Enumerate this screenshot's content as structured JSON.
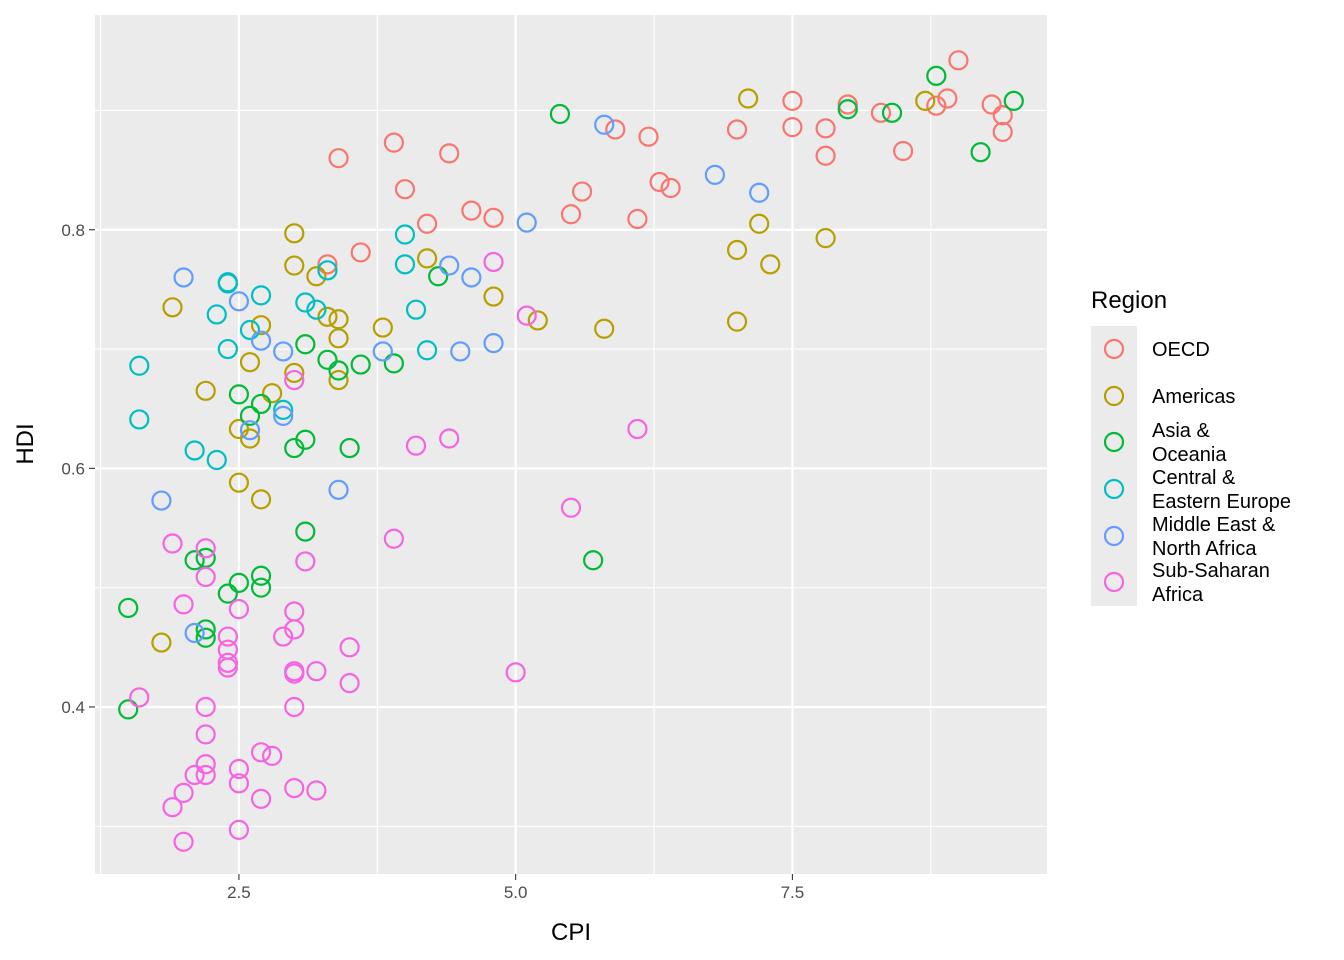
{
  "chart_data": {
    "type": "scatter",
    "xlabel": "CPI",
    "ylabel": "HDI",
    "xlim": [
      1.2,
      9.8
    ],
    "ylim": [
      0.26,
      0.98
    ],
    "x_ticks": [
      2.5,
      5.0,
      7.5
    ],
    "x_tick_labels": [
      "2.5",
      "5.0",
      "7.5"
    ],
    "y_ticks": [
      0.4,
      0.6,
      0.8
    ],
    "y_tick_labels": [
      "0.4",
      "0.6",
      "0.8"
    ],
    "grid": true,
    "marker": "open-circle",
    "legend": {
      "title": "Region",
      "placement": "right",
      "entries": [
        {
          "lines": [
            "OECD"
          ]
        },
        {
          "lines": [
            "Americas"
          ]
        },
        {
          "lines": [
            "Asia &",
            "Oceania"
          ]
        },
        {
          "lines": [
            "Central &",
            "Eastern Europe"
          ]
        },
        {
          "lines": [
            "Middle East &",
            "North Africa"
          ]
        },
        {
          "lines": [
            "Sub-Saharan",
            "Africa"
          ]
        }
      ]
    },
    "series": [
      {
        "name": "OECD",
        "color": "#F8766D",
        "points": [
          [
            9.0,
            0.942
          ],
          [
            9.3,
            0.905
          ],
          [
            9.4,
            0.896
          ],
          [
            9.4,
            0.882
          ],
          [
            8.9,
            0.91
          ],
          [
            8.8,
            0.904
          ],
          [
            8.3,
            0.898
          ],
          [
            8.5,
            0.866
          ],
          [
            8.0,
            0.905
          ],
          [
            7.5,
            0.908
          ],
          [
            7.5,
            0.886
          ],
          [
            7.8,
            0.885
          ],
          [
            7.8,
            0.862
          ],
          [
            7.0,
            0.884
          ],
          [
            6.2,
            0.878
          ],
          [
            5.9,
            0.884
          ],
          [
            6.3,
            0.84
          ],
          [
            6.4,
            0.835
          ],
          [
            5.6,
            0.832
          ],
          [
            5.5,
            0.813
          ],
          [
            6.1,
            0.809
          ],
          [
            4.6,
            0.816
          ],
          [
            4.8,
            0.81
          ],
          [
            4.2,
            0.805
          ],
          [
            4.0,
            0.834
          ],
          [
            3.9,
            0.873
          ],
          [
            4.4,
            0.864
          ],
          [
            3.4,
            0.86
          ],
          [
            3.6,
            0.781
          ],
          [
            3.3,
            0.771
          ]
        ]
      },
      {
        "name": "Americas",
        "color": "#B79F00",
        "points": [
          [
            8.7,
            0.908
          ],
          [
            7.1,
            0.91
          ],
          [
            7.2,
            0.805
          ],
          [
            7.0,
            0.783
          ],
          [
            7.3,
            0.771
          ],
          [
            7.8,
            0.793
          ],
          [
            7.0,
            0.723
          ],
          [
            5.8,
            0.717
          ],
          [
            5.2,
            0.724
          ],
          [
            4.8,
            0.744
          ],
          [
            4.2,
            0.776
          ],
          [
            3.8,
            0.718
          ],
          [
            3.4,
            0.725
          ],
          [
            3.4,
            0.709
          ],
          [
            3.4,
            0.674
          ],
          [
            3.3,
            0.727
          ],
          [
            3.2,
            0.761
          ],
          [
            3.0,
            0.797
          ],
          [
            3.0,
            0.77
          ],
          [
            3.0,
            0.68
          ],
          [
            2.8,
            0.663
          ],
          [
            2.7,
            0.72
          ],
          [
            2.6,
            0.689
          ],
          [
            2.6,
            0.625
          ],
          [
            2.5,
            0.633
          ],
          [
            2.5,
            0.588
          ],
          [
            2.7,
            0.574
          ],
          [
            2.2,
            0.665
          ],
          [
            1.9,
            0.735
          ],
          [
            1.8,
            0.454
          ]
        ]
      },
      {
        "name": "Asia & Oceania",
        "color": "#00BA38",
        "points": [
          [
            9.5,
            0.908
          ],
          [
            8.8,
            0.929
          ],
          [
            8.4,
            0.898
          ],
          [
            8.0,
            0.901
          ],
          [
            9.2,
            0.865
          ],
          [
            5.4,
            0.897
          ],
          [
            5.7,
            0.523
          ],
          [
            4.3,
            0.761
          ],
          [
            3.9,
            0.688
          ],
          [
            3.6,
            0.687
          ],
          [
            3.5,
            0.617
          ],
          [
            3.4,
            0.682
          ],
          [
            3.3,
            0.691
          ],
          [
            3.1,
            0.704
          ],
          [
            3.1,
            0.624
          ],
          [
            3.0,
            0.617
          ],
          [
            3.1,
            0.547
          ],
          [
            2.7,
            0.654
          ],
          [
            2.6,
            0.644
          ],
          [
            2.5,
            0.662
          ],
          [
            2.7,
            0.51
          ],
          [
            2.7,
            0.5
          ],
          [
            2.5,
            0.504
          ],
          [
            2.4,
            0.495
          ],
          [
            2.2,
            0.525
          ],
          [
            2.1,
            0.523
          ],
          [
            2.2,
            0.465
          ],
          [
            2.2,
            0.458
          ],
          [
            1.5,
            0.483
          ],
          [
            1.5,
            0.398
          ]
        ]
      },
      {
        "name": "Central & Eastern Europe",
        "color": "#00BFC4",
        "points": [
          [
            4.0,
            0.796
          ],
          [
            4.0,
            0.771
          ],
          [
            4.1,
            0.733
          ],
          [
            4.2,
            0.699
          ],
          [
            3.3,
            0.766
          ],
          [
            3.2,
            0.733
          ],
          [
            3.1,
            0.739
          ],
          [
            2.7,
            0.745
          ],
          [
            2.6,
            0.716
          ],
          [
            2.4,
            0.756
          ],
          [
            2.4,
            0.755
          ],
          [
            2.3,
            0.729
          ],
          [
            2.4,
            0.7
          ],
          [
            2.9,
            0.649
          ],
          [
            2.1,
            0.615
          ],
          [
            2.3,
            0.607
          ],
          [
            1.6,
            0.686
          ],
          [
            1.6,
            0.641
          ]
        ]
      },
      {
        "name": "Middle East & North Africa",
        "color": "#619CFF",
        "points": [
          [
            5.8,
            0.888
          ],
          [
            6.8,
            0.846
          ],
          [
            7.2,
            0.831
          ],
          [
            5.1,
            0.806
          ],
          [
            4.6,
            0.76
          ],
          [
            4.4,
            0.77
          ],
          [
            4.8,
            0.705
          ],
          [
            4.5,
            0.698
          ],
          [
            3.8,
            0.698
          ],
          [
            3.4,
            0.582
          ],
          [
            2.9,
            0.698
          ],
          [
            2.7,
            0.707
          ],
          [
            2.5,
            0.74
          ],
          [
            2.0,
            0.76
          ],
          [
            2.9,
            0.644
          ],
          [
            2.6,
            0.632
          ],
          [
            1.8,
            0.573
          ],
          [
            2.1,
            0.462
          ]
        ]
      },
      {
        "name": "Sub-Saharan Africa",
        "color": "#F564E3",
        "points": [
          [
            5.1,
            0.728
          ],
          [
            4.8,
            0.773
          ],
          [
            6.1,
            0.633
          ],
          [
            5.5,
            0.567
          ],
          [
            5.0,
            0.429
          ],
          [
            4.4,
            0.625
          ],
          [
            4.1,
            0.619
          ],
          [
            3.9,
            0.541
          ],
          [
            3.5,
            0.45
          ],
          [
            3.5,
            0.42
          ],
          [
            3.2,
            0.43
          ],
          [
            3.2,
            0.33
          ],
          [
            3.1,
            0.522
          ],
          [
            3.0,
            0.48
          ],
          [
            3.0,
            0.465
          ],
          [
            3.0,
            0.43
          ],
          [
            3.0,
            0.428
          ],
          [
            3.0,
            0.4
          ],
          [
            3.0,
            0.332
          ],
          [
            3.0,
            0.674
          ],
          [
            2.9,
            0.459
          ],
          [
            2.8,
            0.359
          ],
          [
            2.7,
            0.362
          ],
          [
            2.7,
            0.323
          ],
          [
            2.5,
            0.482
          ],
          [
            2.5,
            0.348
          ],
          [
            2.5,
            0.336
          ],
          [
            2.5,
            0.297
          ],
          [
            2.4,
            0.459
          ],
          [
            2.4,
            0.448
          ],
          [
            2.4,
            0.437
          ],
          [
            2.4,
            0.433
          ],
          [
            2.2,
            0.533
          ],
          [
            2.2,
            0.509
          ],
          [
            2.2,
            0.4
          ],
          [
            2.2,
            0.377
          ],
          [
            2.2,
            0.352
          ],
          [
            2.2,
            0.343
          ],
          [
            2.1,
            0.343
          ],
          [
            2.0,
            0.486
          ],
          [
            2.0,
            0.328
          ],
          [
            2.0,
            0.287
          ],
          [
            1.9,
            0.537
          ],
          [
            1.9,
            0.316
          ],
          [
            1.6,
            0.408
          ]
        ]
      }
    ]
  }
}
